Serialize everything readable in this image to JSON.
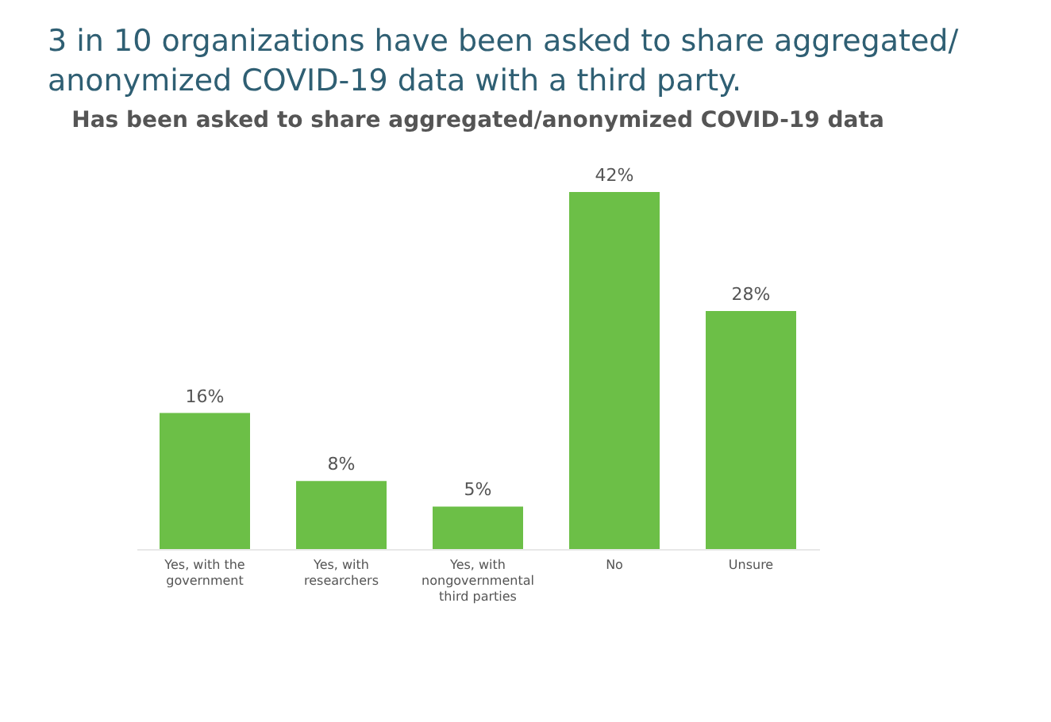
{
  "chart_data": {
    "type": "bar",
    "title": "3 in 10 organizations have been asked to share aggregated/ anonymized COVID-19 data with a third party.",
    "subtitle": "Has been asked to share aggregated/anonymized COVID-19 data",
    "categories": [
      "Yes, with the\ngovernment",
      "Yes, with\nresearchers",
      "Yes, with\nnongovernmental\nthird parties",
      "No",
      "Unsure"
    ],
    "values": [
      16,
      8,
      5,
      42,
      28
    ],
    "value_labels": [
      "16%",
      "8%",
      "5%",
      "42%",
      "28%"
    ],
    "color": "#6cbf47"
  }
}
